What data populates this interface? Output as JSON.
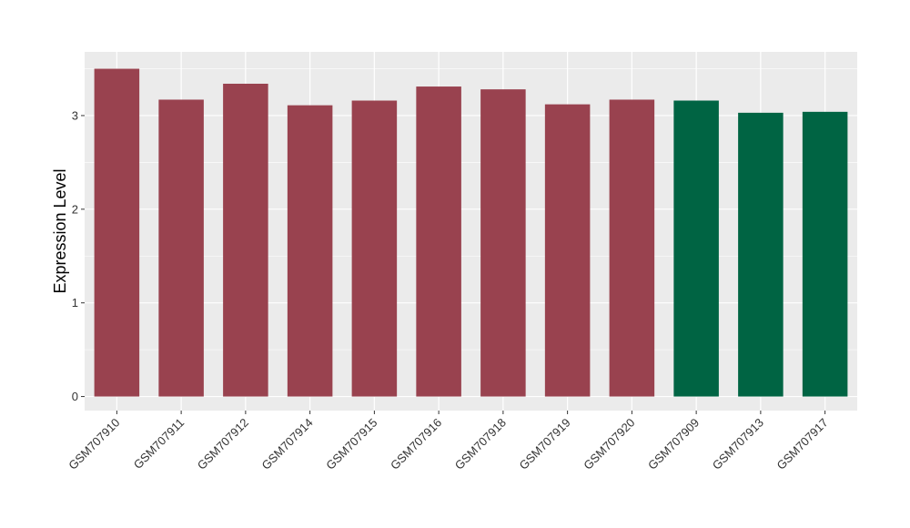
{
  "chart_data": {
    "type": "bar",
    "title": "",
    "xlabel": "",
    "ylabel": "Expression Level",
    "ylim": [
      -0.15,
      3.68
    ],
    "yticks": [
      0,
      1,
      2,
      3
    ],
    "grid": true,
    "categories": [
      "GSM707910",
      "GSM707911",
      "GSM707912",
      "GSM707914",
      "GSM707915",
      "GSM707916",
      "GSM707918",
      "GSM707919",
      "GSM707920",
      "GSM707909",
      "GSM707913",
      "GSM707917"
    ],
    "values": [
      3.5,
      3.17,
      3.34,
      3.11,
      3.16,
      3.31,
      3.28,
      3.12,
      3.17,
      3.16,
      3.03,
      3.04
    ],
    "bar_colors": [
      "#99424f",
      "#99424f",
      "#99424f",
      "#99424f",
      "#99424f",
      "#99424f",
      "#99424f",
      "#99424f",
      "#99424f",
      "#006443",
      "#006443",
      "#006443"
    ],
    "panel_background": "#ebebeb",
    "gridline_color": "#ffffff"
  }
}
